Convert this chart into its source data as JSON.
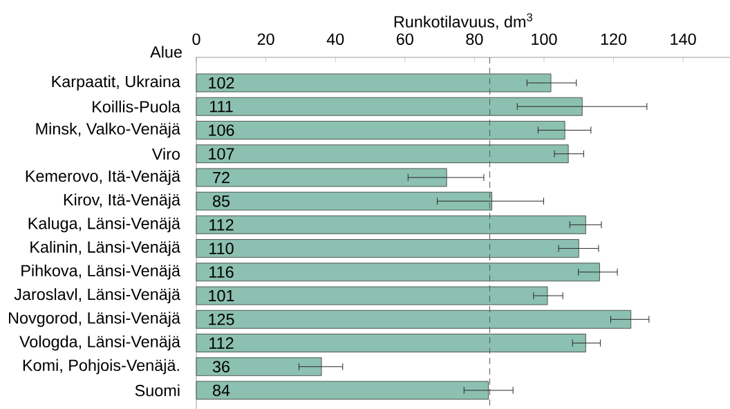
{
  "chart_data": {
    "type": "bar",
    "orientation": "horizontal",
    "xlabel": "Runkotilavuus, dm$^{3}$",
    "ylabel": "Alue",
    "categories": [
      "Karpaatit, Ukraina",
      "Koillis-Puola",
      "Minsk, Valko-Venäjä",
      "Viro",
      "Kemerovo, Itä-Venäjä",
      "Kirov, Itä-Venäjä",
      "Kaluga, Länsi-Venäjä",
      "Kalinin, Länsi-Venäjä",
      "Pihkova, Länsi-Venäjä",
      "Jaroslavl, Länsi-Venäjä",
      "Novgorod, Länsi-Venäjä",
      "Vologda, Länsi-Venäjä",
      "Komi, Pohjois-Venäjä.",
      "Suomi"
    ],
    "values": [
      102,
      111,
      106,
      107,
      72,
      85,
      112,
      110,
      116,
      101,
      125,
      112,
      36,
      84
    ],
    "errors": [
      [
        95.1,
        109.3
      ],
      [
        92.3,
        129.6
      ],
      [
        98.3,
        113.5
      ],
      [
        103.0,
        111.4
      ],
      [
        60.9,
        82.7
      ],
      [
        69.3,
        99.9
      ],
      [
        107.4,
        116.5
      ],
      [
        104.2,
        115.7
      ],
      [
        109.9,
        121.1
      ],
      [
        97.0,
        105.4
      ],
      [
        119.2,
        130.2
      ],
      [
        108.2,
        116.2
      ],
      [
        29.5,
        42.1
      ],
      [
        77.0,
        91.1
      ]
    ],
    "color": "#8cc0b0",
    "data_labels": true,
    "xlim": [
      0,
      153.5
    ],
    "xticks": [
      0,
      20,
      40,
      60,
      80,
      100,
      120,
      140
    ],
    "ref_lines": [
      {
        "axis": "x",
        "value": 84.4,
        "line_style": "dashed",
        "color": "#555555"
      }
    ],
    "grid": false
  }
}
